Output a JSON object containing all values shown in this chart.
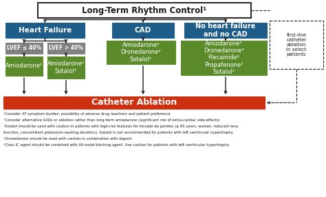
{
  "title": "Long-Term Rhythm Control¹",
  "hf_label": "Heart Failure",
  "cad_label": "CAD",
  "nhf_label": "No heart failure\nand no CAD",
  "lvef_low_label": "LVEF ≤ 40%",
  "lvef_high_label": "LVEF > 40%",
  "drug_amio": "Amiodarone²",
  "drug_amio_sot": "Amiodarone²\nSotalol³",
  "drug_cad": "Amiodarone²\nDronedarone⁴\nSotalol³",
  "drug_nhf": "Amiodarone²\nDronedarone⁴\nFlecainide⁵\nPropafenone⁵\nSotalol³",
  "ablation_label": "Catheter Ablation",
  "dashed_label": "first-line\ncatheter\nablation\nin select\npatients",
  "footnotes": [
    "¹Consider AF symptom burden, possibility of adverse drug reactions and patient preference",
    "²Consider alternative AADs or ablation rather than long-term amiodarone (significant risk of extra-cardiac side-effects)",
    "³Sotalol should be used with caution in patients with high-risk features for torsade de pointes (≥ 65 years, women, reduced rena",
    "function, concomitant potassium-wasting diuretics). Sotalol is not recommended for patients with left ventricular hypertrophy.",
    "⁴Dronedarone should be used with caution in combination with digoxin",
    "⁵Class IC agent should be combined with AV-nodal blocking agent. Use caution for patients with left ventricular hypertrophy."
  ],
  "color_top_bg": "#ffffff",
  "color_top_border": "#2d2d2d",
  "color_blue": "#1e5c8a",
  "color_gray": "#808080",
  "color_green": "#5a8a2a",
  "color_red": "#cc3010",
  "color_white": "#ffffff",
  "color_black": "#1a1a1a"
}
